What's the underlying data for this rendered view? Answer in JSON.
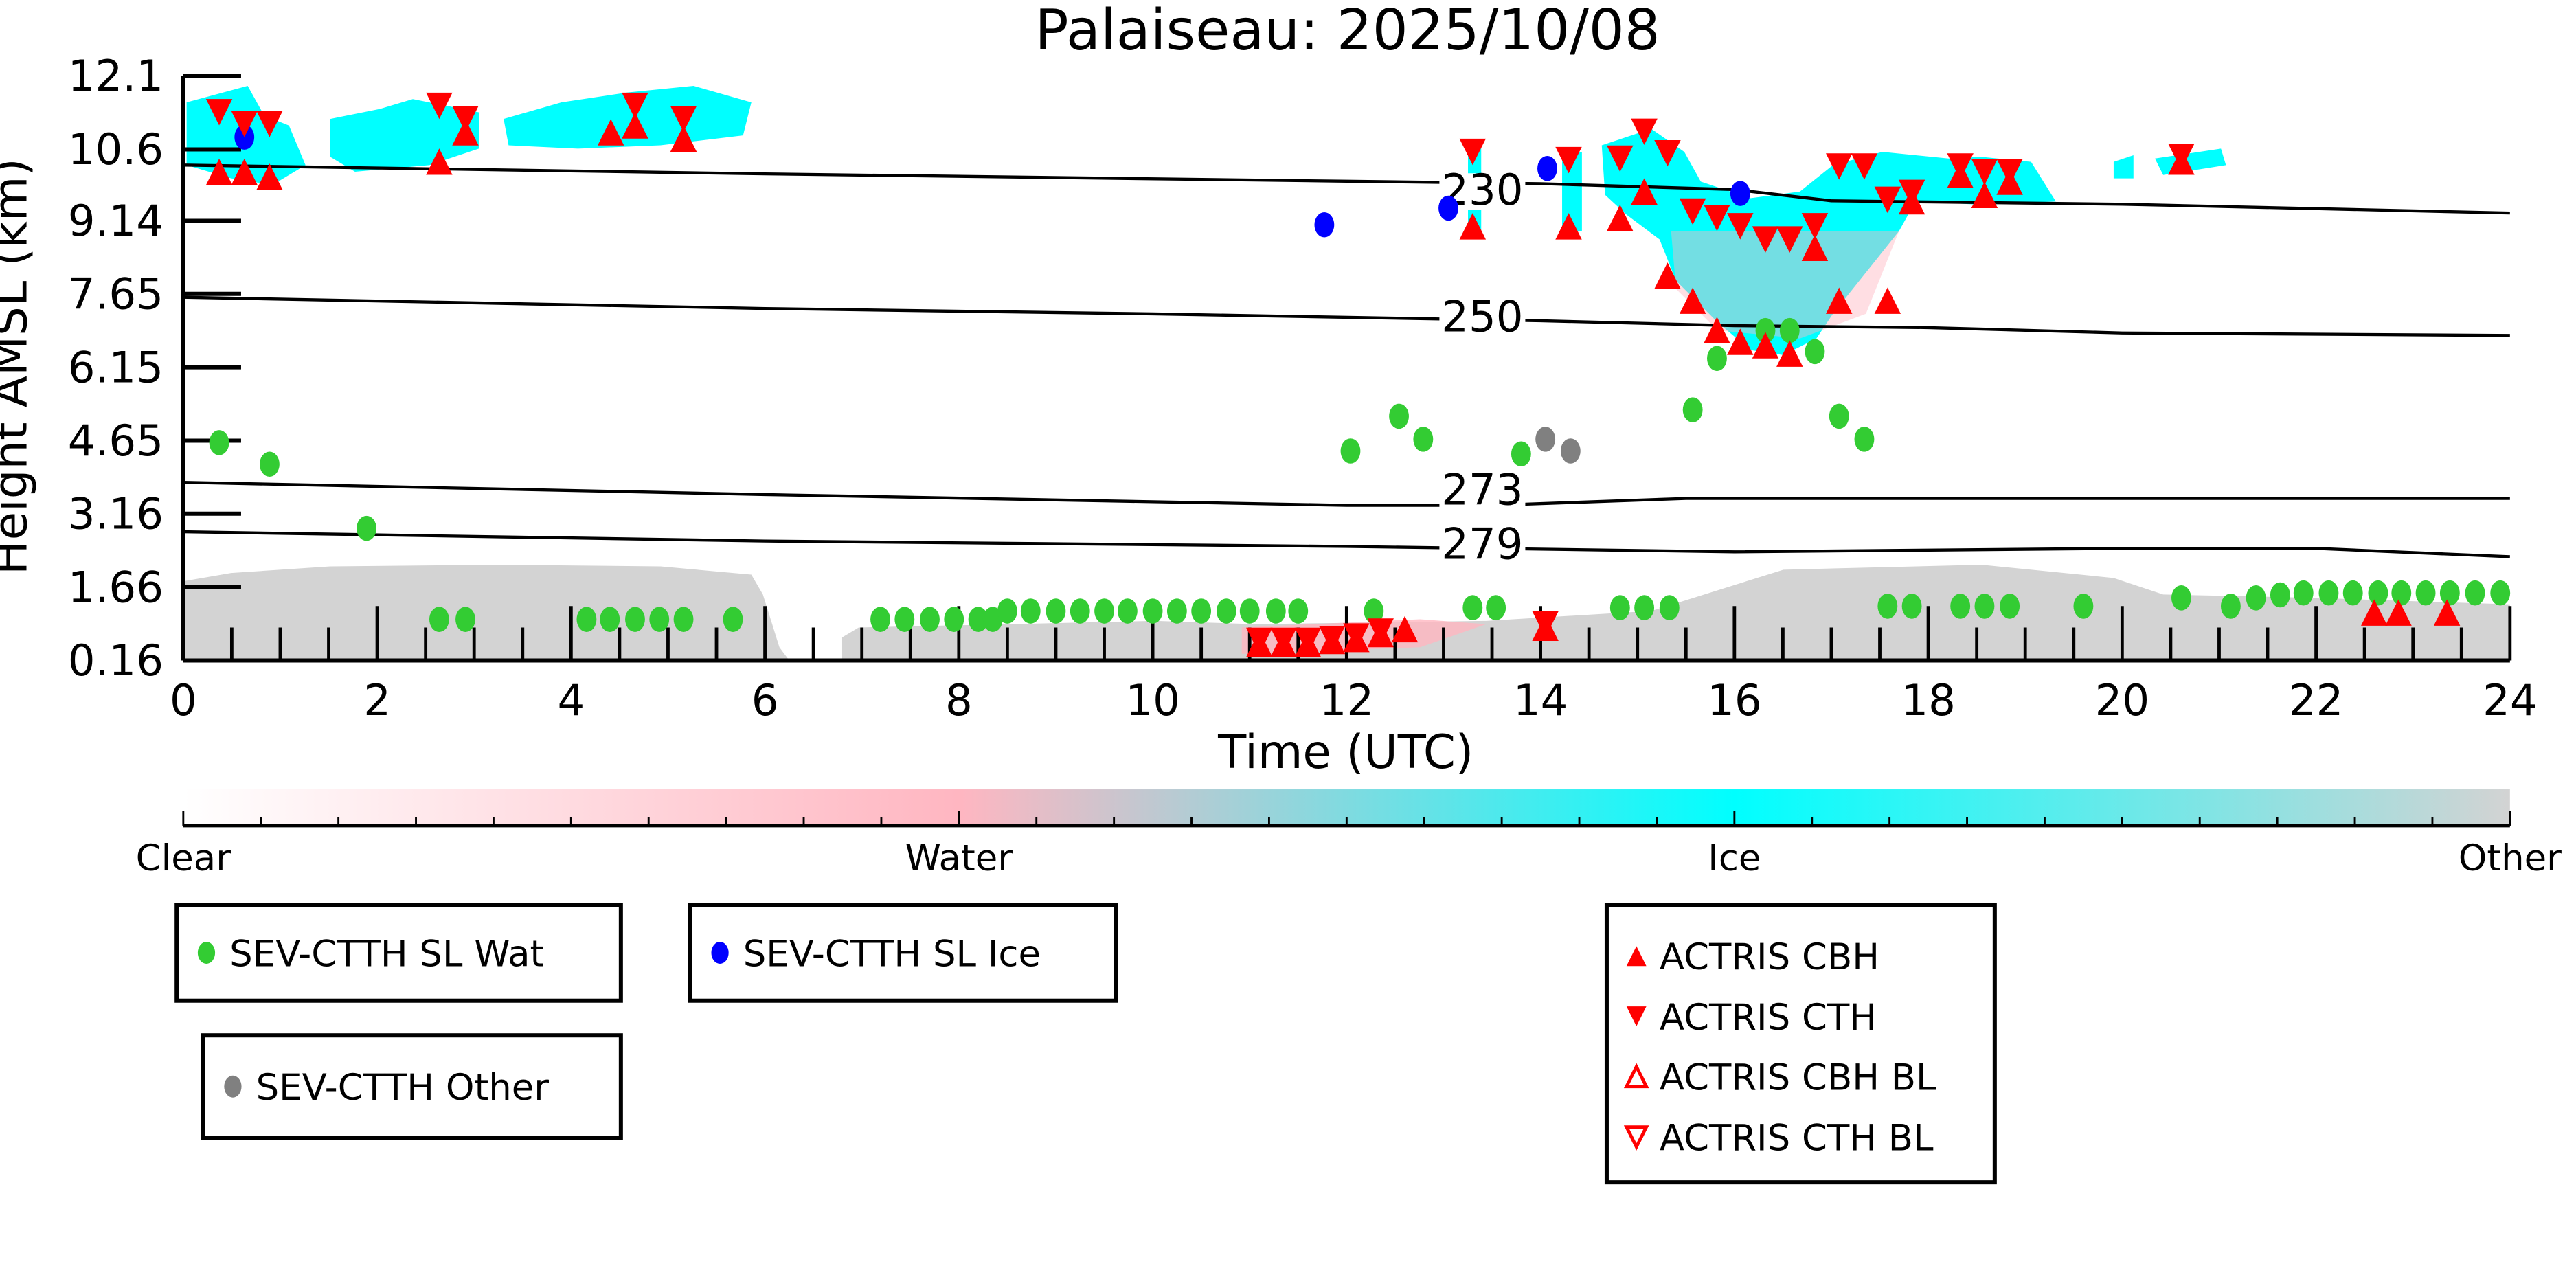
{
  "chart_data": {
    "type": "scatter",
    "title": "Palaiseau: 2025/10/08",
    "xlabel": "Time (UTC)",
    "ylabel": "Height AMSL (km)",
    "xlim": [
      0,
      24
    ],
    "ylim": [
      0.16,
      12.1
    ],
    "xticks": [
      0,
      2,
      4,
      6,
      8,
      10,
      12,
      14,
      16,
      18,
      20,
      22,
      24
    ],
    "yticks": [
      "0.16",
      "1.66",
      "3.16",
      "4.65",
      "6.15",
      "7.65",
      "9.14",
      "10.6",
      "12.1"
    ],
    "colorbar": {
      "labels": [
        "Clear",
        "Water",
        "Ice",
        "Other"
      ],
      "colors": [
        "#ffffff",
        "#ffb6c1",
        "#00ffff",
        "#d3d3d3"
      ]
    },
    "isotherms": [
      {
        "label": "230",
        "x": [
          0,
          6,
          12,
          14,
          16,
          17,
          20,
          24
        ],
        "y": [
          10.28,
          10.1,
          9.95,
          9.9,
          9.78,
          9.55,
          9.48,
          9.3
        ]
      },
      {
        "label": "250",
        "x": [
          0,
          6,
          10,
          14,
          16,
          18,
          20,
          24
        ],
        "y": [
          7.58,
          7.35,
          7.24,
          7.1,
          7.0,
          6.96,
          6.85,
          6.8
        ]
      },
      {
        "label": "273",
        "x": [
          0,
          6,
          12,
          13.5,
          15.5,
          18,
          24
        ],
        "y": [
          3.8,
          3.55,
          3.33,
          3.33,
          3.47,
          3.47,
          3.47
        ]
      },
      {
        "label": "279",
        "x": [
          0,
          6,
          12,
          16,
          20,
          22,
          24
        ],
        "y": [
          2.79,
          2.6,
          2.49,
          2.38,
          2.45,
          2.45,
          2.28
        ]
      }
    ],
    "series": [
      {
        "name": "SEV-CTTH SL Wat",
        "marker": "circle",
        "color": "#33cc33",
        "x": [
          0.37,
          0.89,
          1.89,
          2.64,
          2.91,
          4.16,
          4.4,
          4.66,
          4.91,
          5.16,
          5.67,
          7.19,
          7.44,
          7.7,
          7.95,
          8.2,
          8.35,
          8.5,
          8.74,
          9.0,
          9.25,
          9.5,
          9.74,
          10.0,
          10.25,
          10.5,
          10.76,
          11.0,
          11.27,
          11.5,
          12.28,
          12.04,
          12.54,
          12.79,
          13.8,
          13.3,
          13.54,
          14.82,
          15.07,
          15.33,
          15.57,
          15.82,
          16.32,
          16.57,
          16.83,
          17.08,
          17.34,
          17.58,
          17.83,
          18.33,
          18.58,
          18.84,
          19.6,
          20.61,
          21.12,
          21.38,
          21.63,
          21.87,
          22.13,
          22.38,
          22.64,
          22.88,
          23.13,
          23.38,
          23.64,
          23.9
        ],
        "y": [
          4.61,
          4.17,
          2.86,
          1.0,
          1.0,
          1.0,
          1.0,
          1.0,
          1.0,
          1.0,
          1.0,
          1.0,
          1.0,
          1.0,
          1.0,
          1.0,
          1.0,
          1.17,
          1.17,
          1.17,
          1.17,
          1.17,
          1.17,
          1.17,
          1.17,
          1.17,
          1.17,
          1.17,
          1.17,
          1.17,
          1.17,
          4.44,
          5.15,
          4.68,
          4.38,
          1.24,
          1.24,
          1.24,
          1.24,
          1.24,
          5.28,
          6.33,
          6.9,
          6.9,
          6.47,
          5.15,
          4.68,
          1.27,
          1.27,
          1.27,
          1.27,
          1.27,
          1.27,
          1.44,
          1.27,
          1.44,
          1.5,
          1.54,
          1.54,
          1.54,
          1.54,
          1.54,
          1.54,
          1.54,
          1.54,
          1.54
        ]
      },
      {
        "name": "SEV-CTTH SL Ice",
        "marker": "circle",
        "color": "#0000ff",
        "x": [
          0.63,
          11.77,
          13.05,
          14.07,
          16.06
        ],
        "y": [
          10.85,
          9.06,
          9.4,
          10.21,
          9.7
        ]
      },
      {
        "name": "SEV-CTTH Other",
        "marker": "circle",
        "color": "#808080",
        "x": [
          14.05,
          14.31
        ],
        "y": [
          4.68,
          4.44
        ]
      },
      {
        "name": "ACTRIS CBH",
        "marker": "triangle-up",
        "color": "#ff0000",
        "x": [
          0.37,
          0.63,
          0.89,
          2.64,
          2.91,
          4.41,
          4.66,
          5.16,
          13.3,
          14.29,
          14.82,
          15.07,
          15.31,
          15.57,
          15.82,
          16.06,
          16.32,
          16.57,
          16.83,
          17.08,
          17.58,
          17.83,
          18.33,
          18.58,
          18.84,
          20.61,
          11.1,
          11.35,
          11.6,
          11.85,
          12.1,
          12.35,
          12.6,
          14.05,
          22.6,
          22.85,
          23.35
        ],
        "y": [
          10.14,
          10.14,
          10.04,
          10.35,
          10.95,
          10.95,
          11.09,
          10.82,
          9.03,
          9.03,
          9.2,
          9.74,
          8.02,
          7.51,
          6.91,
          6.67,
          6.6,
          6.43,
          8.59,
          7.51,
          7.51,
          9.54,
          10.08,
          9.67,
          9.94,
          10.35,
          0.5,
          0.5,
          0.5,
          0.56,
          0.6,
          0.7,
          0.8,
          0.83,
          1.14,
          1.14,
          1.14
        ]
      },
      {
        "name": "ACTRIS CTH",
        "marker": "triangle-down",
        "color": "#ff0000",
        "x": [
          0.37,
          0.63,
          0.89,
          2.64,
          2.91,
          4.66,
          5.16,
          13.3,
          14.29,
          14.82,
          15.07,
          15.31,
          15.57,
          15.82,
          16.06,
          16.32,
          16.57,
          16.83,
          17.08,
          17.34,
          17.58,
          17.83,
          18.33,
          18.58,
          18.84,
          20.61,
          11.1,
          11.35,
          11.6,
          11.85,
          12.1,
          12.35,
          14.05
        ],
        "y": [
          11.36,
          11.12,
          11.12,
          11.49,
          11.22,
          11.49,
          11.22,
          10.55,
          10.38,
          10.41,
          10.96,
          10.52,
          9.33,
          9.2,
          9.03,
          8.76,
          8.76,
          9.03,
          10.25,
          10.25,
          9.57,
          9.71,
          10.25,
          10.14,
          10.14,
          10.45,
          0.56,
          0.56,
          0.56,
          0.6,
          0.65,
          0.75,
          0.9
        ]
      },
      {
        "name": "ACTRIS CBH BL",
        "marker": "triangle-up-open",
        "color": "#ff0000",
        "x": [],
        "y": []
      },
      {
        "name": "ACTRIS CTH BL",
        "marker": "triangle-down-open",
        "color": "#ff0000",
        "x": [],
        "y": []
      }
    ]
  }
}
